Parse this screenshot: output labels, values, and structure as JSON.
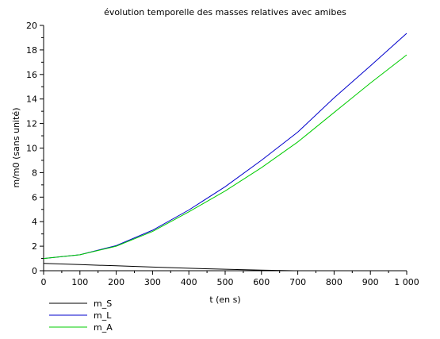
{
  "chart_data": {
    "type": "line",
    "title": "évolution temporelle des masses relatives avec amibes",
    "xlabel": "t (en s)",
    "ylabel": "m/m0 (sans unité)",
    "xlim": [
      0,
      1000
    ],
    "ylim": [
      0,
      20
    ],
    "x_ticks": [
      "0",
      "100",
      "200",
      "300",
      "400",
      "500",
      "600",
      "700",
      "800",
      "900",
      "1 000"
    ],
    "y_ticks": [
      "0",
      "2",
      "4",
      "6",
      "8",
      "10",
      "12",
      "14",
      "16",
      "18",
      "20"
    ],
    "grid": false,
    "legend_position": "bottom-left",
    "x": [
      0,
      100,
      200,
      300,
      400,
      500,
      600,
      700,
      800,
      900,
      1000
    ],
    "series": [
      {
        "name": "m_S",
        "color": "#000000",
        "x": [
          0,
          100,
          200,
          300,
          400,
          500,
          600,
          690
        ],
        "values": [
          0.6,
          0.5,
          0.4,
          0.3,
          0.2,
          0.12,
          0.05,
          0.0
        ]
      },
      {
        "name": "m_L",
        "color": "#0000cc",
        "values": [
          1.0,
          1.3,
          2.05,
          3.3,
          4.95,
          6.85,
          9.0,
          11.3,
          14.1,
          16.7,
          19.35
        ]
      },
      {
        "name": "m_A",
        "color": "#00cc00",
        "values": [
          1.0,
          1.3,
          2.0,
          3.2,
          4.8,
          6.5,
          8.4,
          10.5,
          12.9,
          15.3,
          17.6
        ]
      }
    ]
  }
}
